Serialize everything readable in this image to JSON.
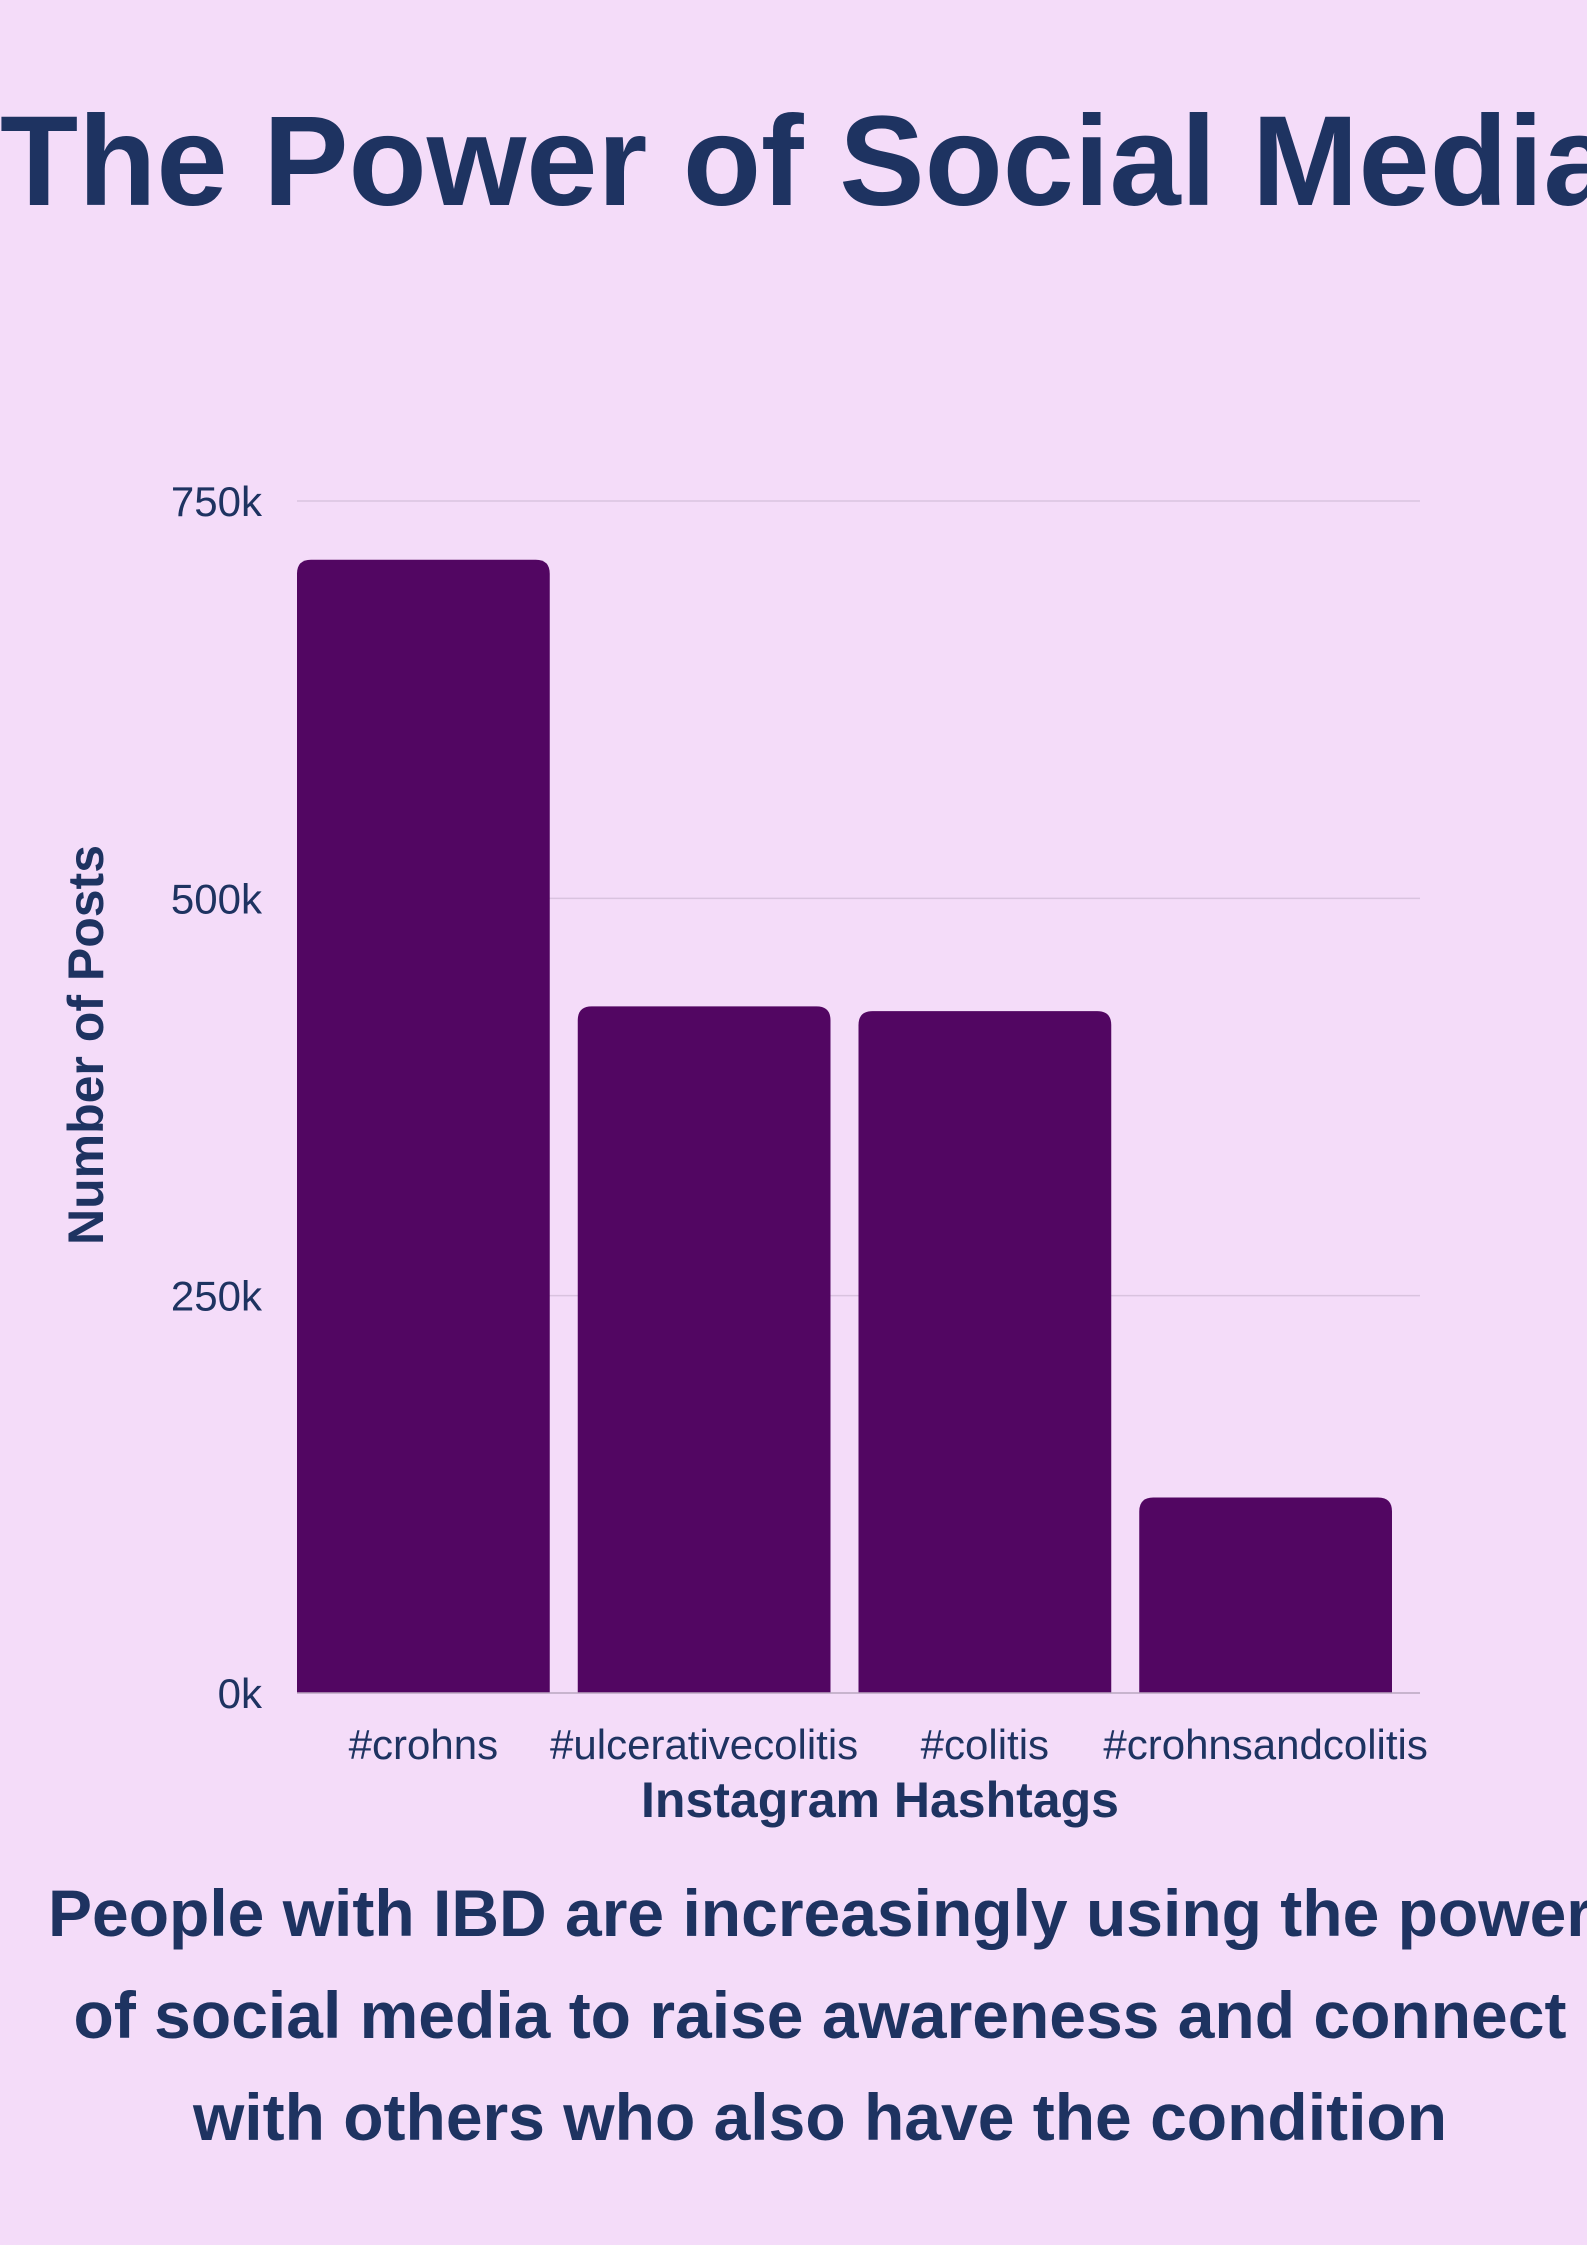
{
  "title": "The Power of Social Media",
  "caption": "People with IBD are increasingly using the power of social media to raise awareness and connect with others who also have the condition",
  "colors": {
    "background": "#f4dcf9",
    "bar": "#520662",
    "text": "#1e3361",
    "grid": "#d9c3df"
  },
  "chart_data": {
    "type": "bar",
    "categories": [
      "#crohns",
      "#ulcerativecolitis",
      "#colitis",
      "#crohnsandcolitis"
    ],
    "series": [
      {
        "values": [
          713000,
          432000,
          429000,
          123000
        ]
      }
    ],
    "xlabel": "Instagram Hashtags",
    "ylabel": "Number of Posts",
    "ylim": [
      0,
      750000
    ],
    "yticks": [
      0,
      250000,
      500000,
      750000
    ],
    "ytick_labels": [
      "0k",
      "250k",
      "500k",
      "750k"
    ],
    "grid": true,
    "legend": "none"
  }
}
